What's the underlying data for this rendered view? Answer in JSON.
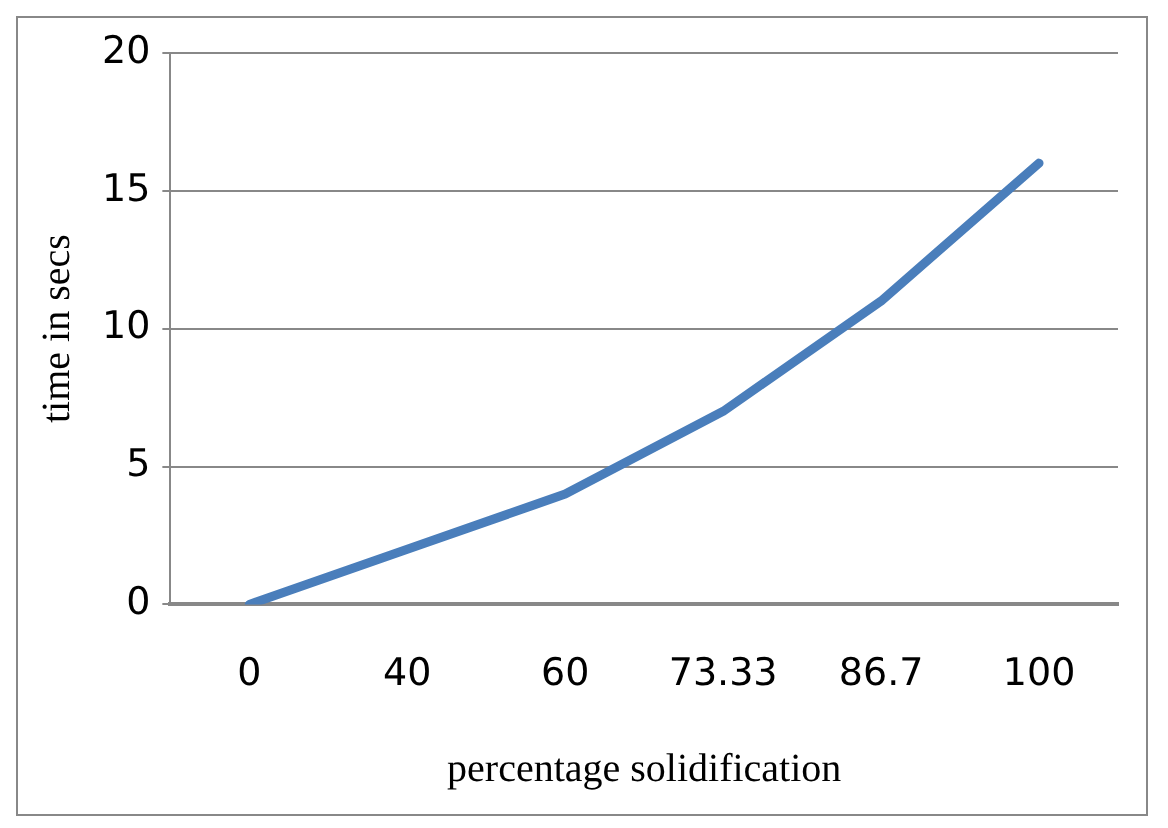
{
  "chart_data": {
    "type": "line",
    "xlabel": "percentage solidification",
    "ylabel": "time in secs",
    "categories": [
      "0",
      "40",
      "60",
      "73.33",
      "86.7",
      "100"
    ],
    "series": [
      {
        "color": "#4a7ebb",
        "values": [
          0,
          2,
          4,
          7,
          11,
          16
        ]
      }
    ],
    "ylim": [
      0,
      20
    ],
    "yticks": [
      0,
      5,
      10,
      15,
      20
    ],
    "grid": "y",
    "legend": false,
    "marker": "none",
    "line_style": "solid"
  }
}
